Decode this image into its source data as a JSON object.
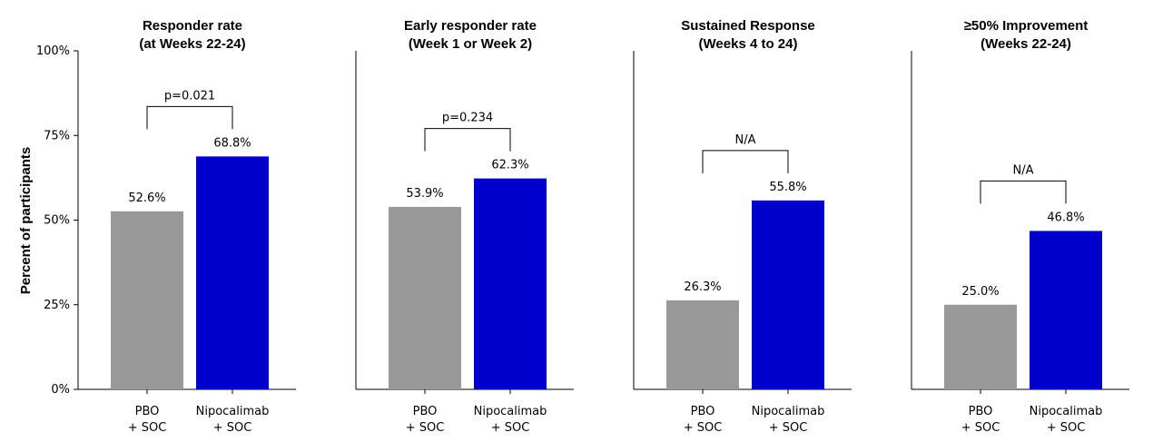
{
  "chart_data": {
    "type": "bar",
    "ylabel": "Percent of participants",
    "ylim": [
      0,
      100
    ],
    "yticks": [
      0,
      25,
      50,
      75,
      100
    ],
    "ytick_labels": [
      "0%",
      "25%",
      "50%",
      "75%",
      "100%"
    ],
    "categories": [
      {
        "line1": "PBO",
        "line2": "+ SOC"
      },
      {
        "line1": "Nipocalimab",
        "line2": "+ SOC"
      }
    ],
    "colors": [
      "#999999",
      "#0000cc"
    ],
    "panels": [
      {
        "title_line1": "Responder rate",
        "title_line2": "(at Weeks 22-24)",
        "values": [
          52.6,
          68.8
        ],
        "value_labels": [
          "52.6%",
          "68.8%"
        ],
        "bracket_label": "p=0.021"
      },
      {
        "title_line1": "Early responder rate",
        "title_line2": "(Week 1 or Week 2)",
        "values": [
          53.9,
          62.3
        ],
        "value_labels": [
          "53.9%",
          "62.3%"
        ],
        "bracket_label": "p=0.234"
      },
      {
        "title_line1": "Sustained Response",
        "title_line2": "(Weeks 4 to 24)",
        "values": [
          26.3,
          55.8
        ],
        "value_labels": [
          "26.3%",
          "55.8%"
        ],
        "bracket_label": "N/A"
      },
      {
        "title_line1": "≥50% Improvement",
        "title_line2": "(Weeks 22-24)",
        "values": [
          25.0,
          46.8
        ],
        "value_labels": [
          "25.0%",
          "46.8%"
        ],
        "bracket_label": "N/A"
      }
    ]
  }
}
